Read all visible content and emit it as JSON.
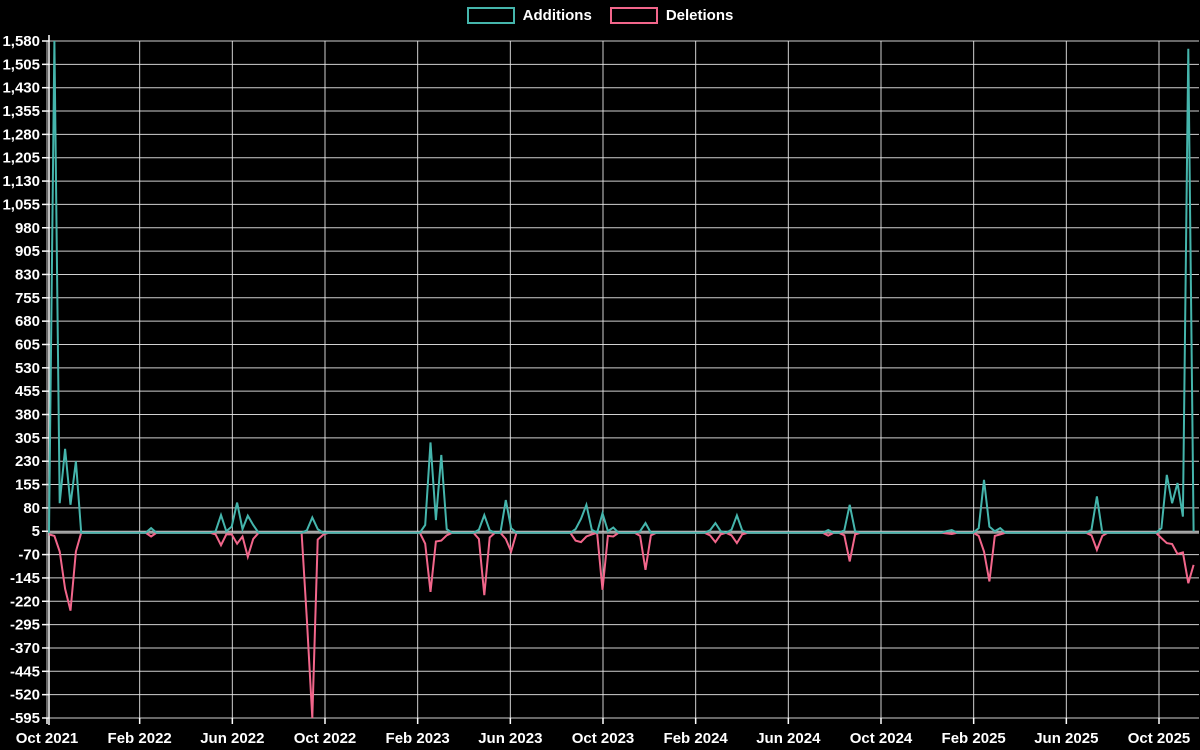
{
  "chart_data": {
    "type": "line",
    "title": "",
    "legend": {
      "position": "top",
      "entries": [
        "Additions",
        "Deletions"
      ]
    },
    "colors": {
      "additions": "#45b5ac",
      "deletions": "#f2668b",
      "background": "#000000",
      "grid": "#e8e8e8",
      "zero_line": "#9e9e9e",
      "text": "#ffffff"
    },
    "y_axis": {
      "min": -595,
      "max": 1580,
      "step": 75,
      "tick_labels": [
        "1,580",
        "1,505",
        "1,430",
        "1,355",
        "1,280",
        "1,205",
        "1,130",
        "1,055",
        "980",
        "905",
        "830",
        "755",
        "680",
        "605",
        "530",
        "455",
        "380",
        "305",
        "230",
        "155",
        "80",
        "5",
        "-70",
        "-145",
        "-220",
        "-295",
        "-370",
        "-445",
        "-520",
        "-595"
      ]
    },
    "x_axis": {
      "unit": "week",
      "tick_labels": [
        "Oct 2021",
        "Feb 2022",
        "Jun 2022",
        "Oct 2022",
        "Feb 2023",
        "Jun 2023",
        "Oct 2023",
        "Feb 2024",
        "Jun 2024",
        "Oct 2024",
        "Feb 2025",
        "Jun 2025",
        "Oct 2025"
      ]
    },
    "weeks_total": 214,
    "baseline_value": 0,
    "points_note": "weekly series from Oct 2021 to Nov 2025; week indices not listed have value 0",
    "series": [
      {
        "name": "Additions",
        "color": "#45b5ac",
        "points": {
          "1": 1580,
          "2": 95,
          "3": 270,
          "4": 90,
          "5": 230,
          "19": 15,
          "31": 5,
          "32": 57,
          "33": 5,
          "34": 20,
          "35": 97,
          "36": 12,
          "37": 55,
          "38": 25,
          "48": 8,
          "49": 49,
          "50": 12,
          "70": 25,
          "71": 290,
          "72": 41,
          "73": 250,
          "74": 12,
          "80": 10,
          "81": 57,
          "82": 8,
          "85": 105,
          "86": 15,
          "98": 12,
          "99": 45,
          "100": 90,
          "101": 10,
          "103": 63,
          "104": 5,
          "105": 17,
          "110": 5,
          "111": 31,
          "123": 8,
          "124": 31,
          "125": 5,
          "127": 10,
          "128": 56,
          "129": 8,
          "145": 9,
          "148": 8,
          "149": 90,
          "150": 5,
          "167": 5,
          "168": 9,
          "173": 15,
          "174": 170,
          "175": 20,
          "176": 5,
          "177": 15,
          "194": 10,
          "195": 117,
          "207": 15,
          "208": 186,
          "209": 95,
          "210": 160,
          "211": 52,
          "212": 1555,
          "213": 5
        }
      },
      {
        "name": "Deletions",
        "color": "#f2668b",
        "points": {
          "0": -5,
          "1": -10,
          "2": -60,
          "3": -180,
          "4": -250,
          "5": -60,
          "19": -12,
          "31": -5,
          "32": -40,
          "33": -5,
          "34": -5,
          "35": -35,
          "36": -12,
          "37": -77,
          "38": -20,
          "48": -280,
          "49": -595,
          "50": -22,
          "51": -6,
          "70": -35,
          "71": -190,
          "72": -28,
          "73": -25,
          "74": -8,
          "80": -20,
          "81": -200,
          "82": -15,
          "85": -20,
          "86": -60,
          "98": -25,
          "99": -30,
          "100": -12,
          "101": -5,
          "103": -183,
          "104": -10,
          "105": -12,
          "110": -10,
          "111": -119,
          "112": -8,
          "123": -8,
          "124": -30,
          "125": -5,
          "127": -8,
          "128": -33,
          "129": -5,
          "145": -9,
          "148": -8,
          "149": -92,
          "150": -5,
          "167": -2,
          "168": -4,
          "173": -10,
          "174": -60,
          "175": -156,
          "176": -10,
          "177": -5,
          "194": -8,
          "195": -55,
          "196": -10,
          "207": -17,
          "208": -33,
          "209": -36,
          "210": -68,
          "211": -63,
          "212": -162,
          "213": -103
        }
      }
    ]
  }
}
